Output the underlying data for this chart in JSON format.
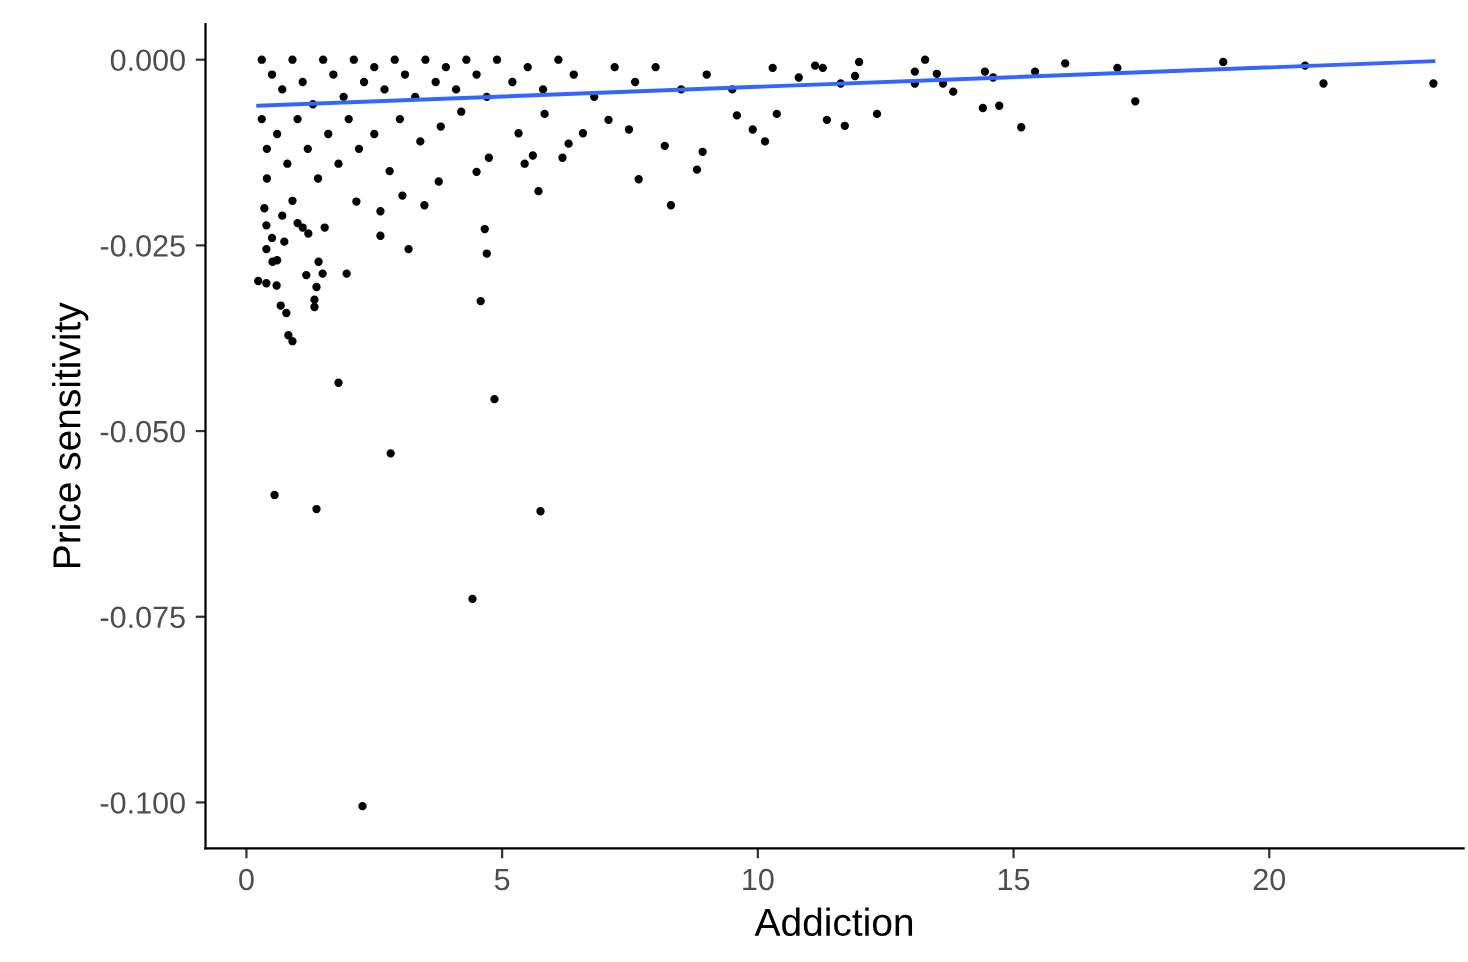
{
  "chart_data": {
    "type": "scatter",
    "xlabel": "Addiction",
    "ylabel": "Price sensitivity",
    "xlim": [
      -0.8,
      23.8
    ],
    "ylim": [
      -0.1062,
      0.0048
    ],
    "xticks": [
      0,
      5,
      10,
      15,
      20
    ],
    "yticks": [
      {
        "value": 0.0,
        "label": "0.000"
      },
      {
        "value": -0.025,
        "label": "-0.025"
      },
      {
        "value": -0.05,
        "label": "-0.050"
      },
      {
        "value": -0.075,
        "label": "-0.075"
      },
      {
        "value": -0.1,
        "label": "-0.100"
      }
    ],
    "grid": false,
    "series": [
      {
        "color": "#000000",
        "marker": "circle",
        "x": [
          2.27,
          0.55,
          1.37,
          2.82,
          4.85,
          4.42,
          5.75,
          1.8,
          4.58,
          4.66,
          4.7,
          0.23,
          0.39,
          0.59,
          0.67,
          0.78,
          0.82,
          0.9,
          1.33,
          1.33,
          1.37,
          1.17,
          1.49,
          1.96,
          1.41,
          0.39,
          0.39,
          0.51,
          0.74,
          1.1,
          1.21,
          1.53,
          2.62,
          2.62,
          3.17,
          2.15,
          3.48,
          3.05,
          3.76,
          4.5,
          4.74,
          5.71,
          5.44,
          5.6,
          6.18,
          7.67,
          8.3,
          8.81,
          8.92,
          10.14,
          9.9,
          11.35,
          10.37,
          9.59,
          8.18,
          6.58,
          6.3,
          5.32,
          5.83,
          7.48,
          7.08,
          10.29,
          10.8,
          11.12,
          11.27,
          11.7,
          11.62,
          11.9,
          11.98,
          12.33,
          13.07,
          13.07,
          13.27,
          13.5,
          13.62,
          13.82,
          14.4,
          14.44,
          14.6,
          14.72,
          15.15,
          15.42,
          16.01,
          17.03,
          17.38,
          19.1,
          20.7,
          21.06,
          23.21,
          0.3,
          0.5,
          0.7,
          0.9,
          1.1,
          1.3,
          1.5,
          1.7,
          1.9,
          2.1,
          2.3,
          2.5,
          2.7,
          2.9,
          3.1,
          3.3,
          3.5,
          3.7,
          3.9,
          4.1,
          4.3,
          4.5,
          4.7,
          4.9,
          5.2,
          5.5,
          5.8,
          6.1,
          6.4,
          6.8,
          7.2,
          7.6,
          8.0,
          8.5,
          9.0,
          9.5,
          0.3,
          0.4,
          0.4,
          0.6,
          0.8,
          0.9,
          1.0,
          1.2,
          1.4,
          1.6,
          1.8,
          2.0,
          2.2,
          2.5,
          2.8,
          3.0,
          3.4,
          3.8,
          4.2,
          0.35,
          0.5,
          0.7,
          1.0,
          0.6
        ],
        "values": [
          -0.1005,
          -0.0586,
          -0.0605,
          -0.053,
          -0.0457,
          -0.0726,
          -0.0608,
          -0.0435,
          -0.0325,
          -0.0228,
          -0.0261,
          -0.0298,
          -0.0301,
          -0.0304,
          -0.0331,
          -0.0341,
          -0.0371,
          -0.0379,
          -0.0323,
          -0.0333,
          -0.0306,
          -0.029,
          -0.0288,
          -0.0288,
          -0.0272,
          -0.0223,
          -0.0255,
          -0.0272,
          -0.0245,
          -0.0226,
          -0.0234,
          -0.0226,
          -0.0204,
          -0.0237,
          -0.0255,
          -0.0191,
          -0.0196,
          -0.0183,
          -0.0164,
          -0.0151,
          -0.0132,
          -0.0177,
          -0.014,
          -0.0129,
          -0.0132,
          -0.0161,
          -0.0196,
          -0.0148,
          -0.0124,
          -0.011,
          -0.0094,
          -0.0081,
          -0.0073,
          -0.0075,
          -0.0116,
          -0.0099,
          -0.0113,
          -0.0099,
          -0.0073,
          -0.0094,
          -0.0081,
          -0.0011,
          -0.0024,
          -0.0008,
          -0.0011,
          -0.0089,
          -0.0032,
          -0.0022,
          -0.0003,
          -0.0073,
          -0.0016,
          -0.0032,
          0.0,
          -0.0019,
          -0.0032,
          -0.0043,
          -0.0065,
          -0.0016,
          -0.0024,
          -0.0062,
          -0.0091,
          -0.0016,
          -0.0005,
          -0.0011,
          -0.0056,
          -0.0003,
          -0.0008,
          -0.0032,
          -0.0032,
          0.0,
          -0.002,
          -0.004,
          0.0,
          -0.003,
          -0.006,
          0.0,
          -0.002,
          -0.005,
          0.0,
          -0.003,
          -0.001,
          -0.004,
          0.0,
          -0.002,
          -0.005,
          0.0,
          -0.003,
          -0.001,
          -0.004,
          0.0,
          -0.002,
          -0.005,
          0.0,
          -0.003,
          -0.001,
          -0.004,
          0.0,
          -0.002,
          -0.005,
          -0.001,
          -0.003,
          -0.001,
          -0.004,
          -0.002,
          -0.004,
          -0.008,
          -0.012,
          -0.016,
          -0.01,
          -0.014,
          -0.019,
          -0.008,
          -0.012,
          -0.016,
          -0.01,
          -0.014,
          -0.008,
          -0.012,
          -0.01,
          -0.015,
          -0.008,
          -0.011,
          -0.009,
          -0.007,
          -0.02,
          -0.024,
          -0.021,
          -0.022,
          -0.027
        ]
      },
      {
        "type": "line",
        "color": "#3366ff",
        "marker": "none",
        "x": [
          0.23,
          23.21
        ],
        "values": [
          -0.0062,
          -0.0002
        ]
      }
    ]
  }
}
